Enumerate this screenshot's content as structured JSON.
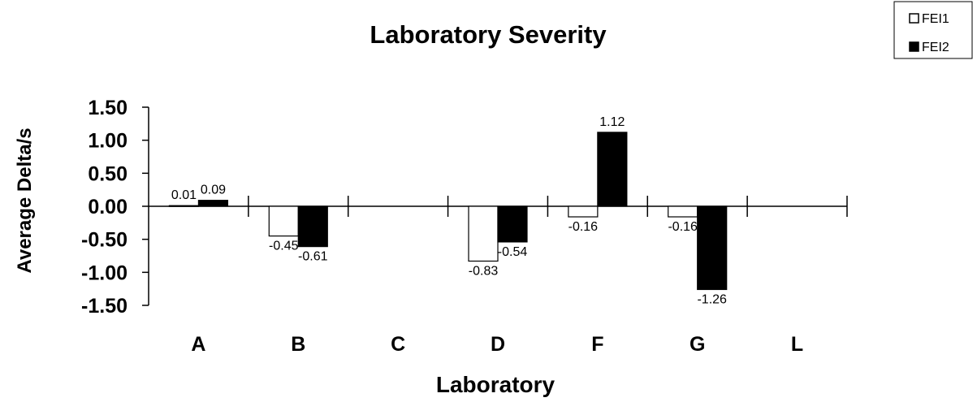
{
  "chart_data": {
    "type": "bar",
    "title": "Laboratory Severity",
    "xlabel": "Laboratory",
    "ylabel": "Average Delta/s",
    "categories": [
      "A",
      "B",
      "C",
      "D",
      "F",
      "G",
      "L"
    ],
    "series": [
      {
        "name": "FEI1",
        "color": "#ffffff",
        "values": [
          0.01,
          -0.45,
          null,
          -0.83,
          -0.16,
          -0.16,
          null
        ],
        "labels": [
          "0.01",
          "-0.45",
          "",
          "-0.83",
          "-0.16",
          "-0.16",
          ""
        ]
      },
      {
        "name": "FEI2",
        "color": "#000000",
        "values": [
          0.09,
          -0.61,
          null,
          -0.54,
          1.12,
          -1.26,
          null
        ],
        "labels": [
          "0.09",
          "-0.61",
          "",
          "-0.54",
          "1.12",
          "-1.26",
          ""
        ]
      }
    ],
    "ylim": [
      -1.5,
      1.5
    ],
    "yticks": [
      "1.50",
      "1.00",
      "0.50",
      "0.00",
      "-0.50",
      "-1.00",
      "-1.50"
    ],
    "ytick_values": [
      1.5,
      1.0,
      0.5,
      0.0,
      -0.5,
      -1.0,
      -1.5
    ],
    "legend_position": "top-right",
    "grid": false
  }
}
